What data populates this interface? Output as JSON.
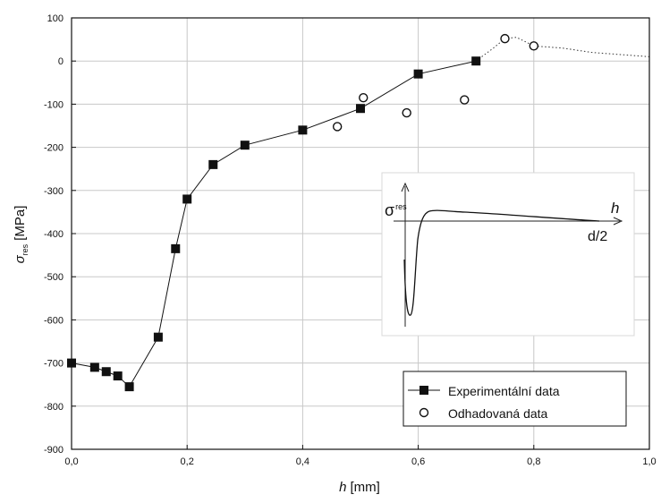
{
  "chart_data": {
    "type": "scatter",
    "xlabel_italic": "h",
    "xlabel_unit": "[mm]",
    "ylabel_symbol": "σ",
    "ylabel_subscript": "res",
    "ylabel_unit": "[MPa]",
    "xlim": [
      0.0,
      1.0
    ],
    "ylim": [
      -900,
      100
    ],
    "x_ticks": [
      0.0,
      0.2,
      0.4,
      0.6,
      0.8,
      1.0
    ],
    "x_tick_labels": [
      "0,0",
      "0,2",
      "0,4",
      "0,6",
      "0,8",
      "1,0"
    ],
    "y_ticks": [
      100,
      0,
      -100,
      -200,
      -300,
      -400,
      -500,
      -600,
      -700,
      -800,
      -900
    ],
    "y_tick_labels": [
      "100",
      "0",
      "-100",
      "-200",
      "-300",
      "-400",
      "-500",
      "-600",
      "-700",
      "-800",
      "-900"
    ],
    "grid": true,
    "legend_position": "bottom-right",
    "series": [
      {
        "name": "Experimentální data",
        "marker": "filled-square",
        "line": "solid",
        "x": [
          0.0,
          0.04,
          0.06,
          0.08,
          0.1,
          0.15,
          0.18,
          0.2,
          0.245,
          0.3,
          0.4,
          0.5,
          0.6,
          0.7
        ],
        "y": [
          -700,
          -710,
          -720,
          -730,
          -755,
          -640,
          -435,
          -320,
          -240,
          -195,
          -160,
          -110,
          -30,
          0
        ]
      },
      {
        "name": "Odhadovaná data",
        "marker": "open-circle",
        "line": "none",
        "x": [
          0.46,
          0.505,
          0.58,
          0.68,
          0.75,
          0.8
        ],
        "y": [
          -152,
          -85,
          -120,
          -90,
          52,
          35
        ]
      }
    ],
    "dotted_extension": {
      "x": [
        0.7,
        0.73,
        0.75,
        0.77,
        0.8,
        0.85,
        0.9,
        0.95,
        1.0
      ],
      "y": [
        0,
        30,
        52,
        55,
        35,
        30,
        20,
        15,
        10
      ]
    },
    "inset": {
      "y_label_symbol": "σ",
      "y_label_subscript": "res",
      "x_label": "h",
      "x_end_label": "d/2"
    }
  }
}
